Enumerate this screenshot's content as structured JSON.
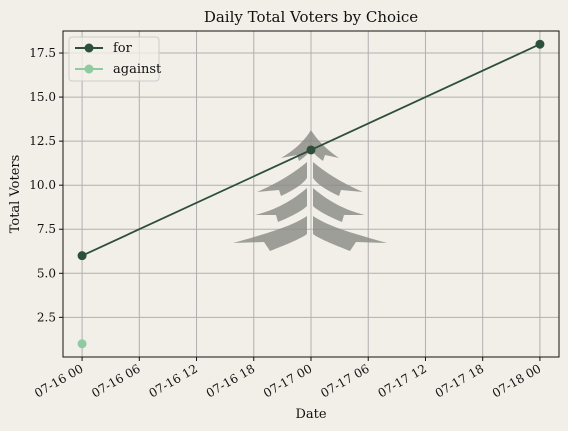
{
  "chart_data": {
    "type": "line",
    "title": "Daily Total Voters by Choice",
    "xlabel": "Date",
    "ylabel": "Total Voters",
    "x_ticks": [
      "07-16 00",
      "07-16 06",
      "07-16 12",
      "07-16 18",
      "07-17 00",
      "07-17 06",
      "07-17 12",
      "07-17 18",
      "07-18 00"
    ],
    "y_ticks": [
      "2.5",
      "5.0",
      "7.5",
      "10.0",
      "12.5",
      "15.0",
      "17.5"
    ],
    "xlim": [
      "07-15 22",
      "07-18 02"
    ],
    "ylim": [
      0.25,
      18.75
    ],
    "grid": true,
    "legend_position": "top-left",
    "series": [
      {
        "name": "for",
        "color": "#2d4f3c",
        "points": [
          {
            "x": "07-16 00",
            "y": 6
          },
          {
            "x": "07-17 00",
            "y": 12
          },
          {
            "x": "07-18 00",
            "y": 18
          }
        ]
      },
      {
        "name": "against",
        "color": "#8fcaa0",
        "points": [
          {
            "x": "07-16 00",
            "y": 1
          }
        ]
      }
    ],
    "watermark": "tree-icon"
  }
}
